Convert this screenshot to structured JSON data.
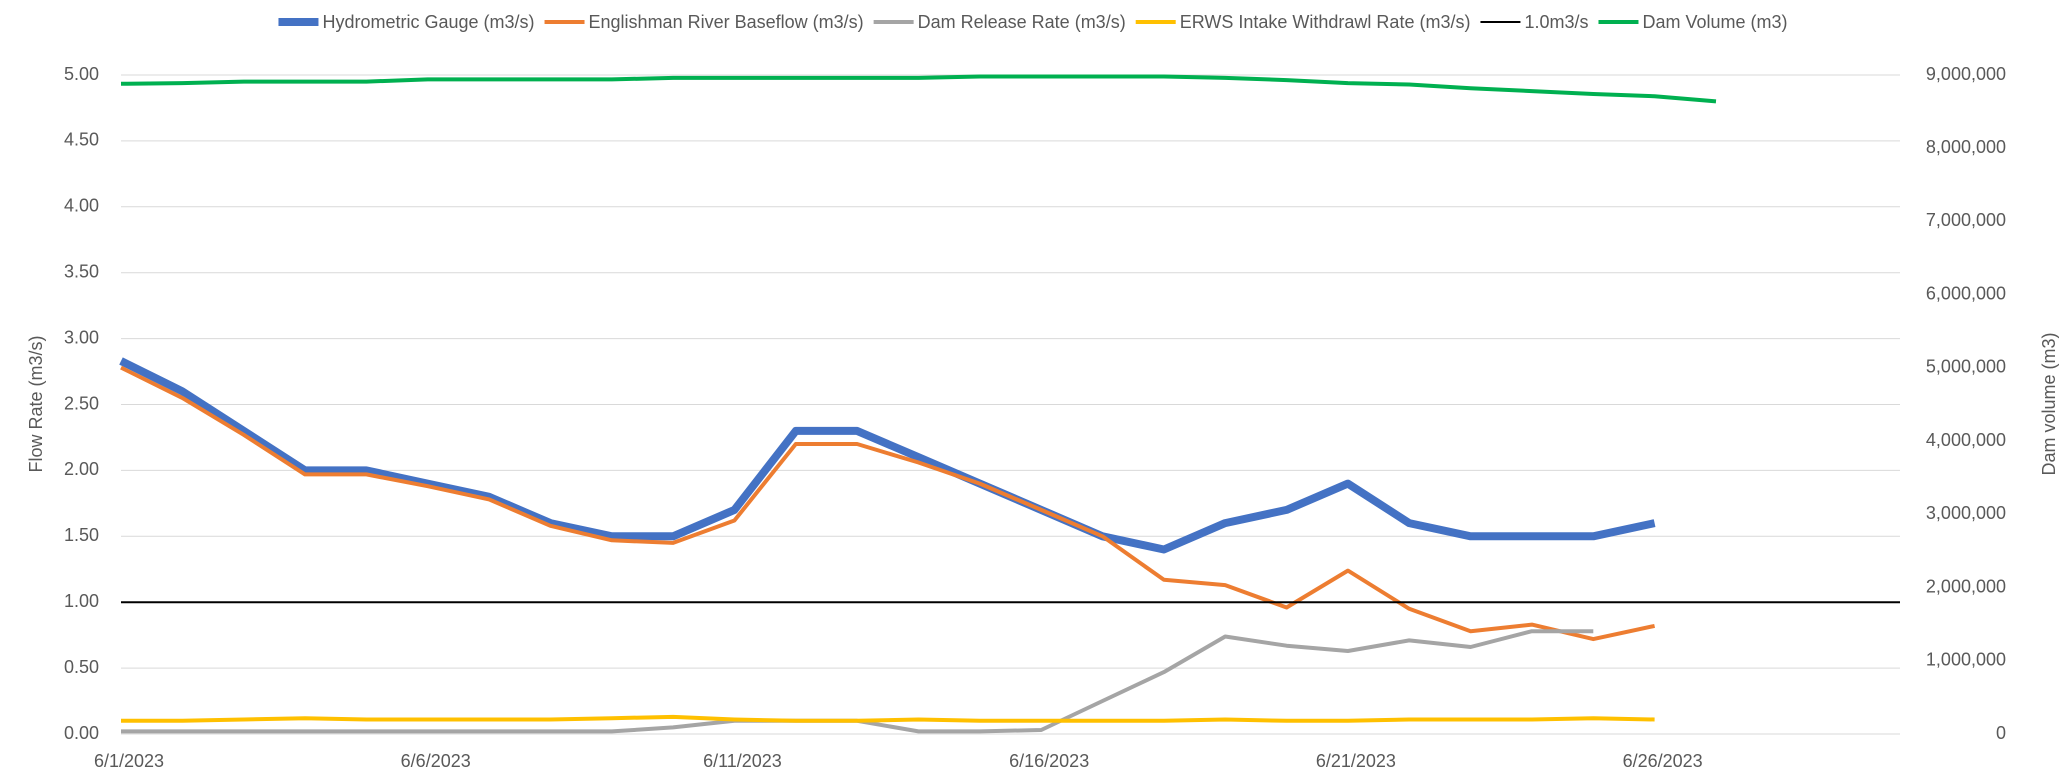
{
  "chart_data": {
    "type": "line",
    "y_label": "Flow Rate (m3/s)",
    "y2_label": "Dam volume (m3)",
    "categories": [
      "6/1/2023",
      null,
      null,
      null,
      null,
      "6/6/2023",
      null,
      null,
      null,
      null,
      "6/11/2023",
      null,
      null,
      null,
      null,
      "6/16/2023",
      null,
      null,
      null,
      null,
      "6/21/2023",
      null,
      null,
      null,
      null,
      "6/26/2023",
      null,
      null,
      null,
      null
    ],
    "ylim": [
      0,
      5
    ],
    "yticks": [
      {
        "value": 0,
        "label": "0.00"
      },
      {
        "value": 0.5,
        "label": "0.50"
      },
      {
        "value": 1,
        "label": "1.00"
      },
      {
        "value": 1.5,
        "label": "1.50"
      },
      {
        "value": 2,
        "label": "2.00"
      },
      {
        "value": 2.5,
        "label": "2.50"
      },
      {
        "value": 3,
        "label": "3.00"
      },
      {
        "value": 3.5,
        "label": "3.50"
      },
      {
        "value": 4,
        "label": "4.00"
      },
      {
        "value": 4.5,
        "label": "4.50"
      },
      {
        "value": 5,
        "label": "5.00"
      }
    ],
    "y2lim": [
      0,
      9000000
    ],
    "y2ticks": [
      0,
      {
        "value": 1000000,
        "label": "1,000,000"
      },
      {
        "value": 2000000,
        "label": "2,000,000"
      },
      {
        "value": 3000000,
        "label": "3,000,000"
      },
      {
        "value": 4000000,
        "label": "4,000,000"
      },
      {
        "value": 5000000,
        "label": "5,000,000"
      },
      {
        "value": 6000000,
        "label": "6,000,000"
      },
      {
        "value": 7000000,
        "label": "7,000,000"
      },
      {
        "value": 8000000,
        "label": "8,000,000"
      },
      {
        "value": 9000000,
        "label": "9,000,000"
      }
    ],
    "grid": true,
    "legend": "top",
    "series": [
      {
        "name": "Hydrometric Gauge (m3/s)",
        "color": "#4472c4",
        "width": 8,
        "values": [
          2.83,
          2.6,
          2.3,
          2.0,
          2.0,
          1.9,
          1.8,
          1.6,
          1.5,
          1.5,
          1.7,
          2.3,
          2.3,
          2.1,
          1.9,
          1.7,
          1.5,
          1.4,
          1.6,
          1.7,
          1.9,
          1.6,
          1.5,
          1.5,
          1.5,
          1.6,
          null,
          null,
          null,
          null
        ]
      },
      {
        "name": "Englishman River Baseflow (m3/s)",
        "color": "#ed7d31",
        "width": 4,
        "values": [
          2.78,
          2.55,
          2.27,
          1.97,
          1.97,
          1.88,
          1.78,
          1.58,
          1.47,
          1.45,
          1.62,
          2.2,
          2.2,
          2.06,
          1.9,
          1.7,
          1.5,
          1.17,
          1.13,
          0.96,
          1.24,
          0.95,
          0.78,
          0.83,
          0.72,
          0.82,
          null,
          null,
          null,
          null
        ]
      },
      {
        "name": "Dam Release Rate (m3/s)",
        "color": "#a5a5a5",
        "width": 4,
        "values": [
          0.02,
          0.02,
          0.02,
          0.02,
          0.02,
          0.02,
          0.02,
          0.02,
          0.02,
          0.05,
          0.1,
          0.1,
          0.1,
          0.02,
          0.02,
          0.03,
          0.25,
          0.47,
          0.74,
          0.67,
          0.63,
          0.71,
          0.66,
          0.78,
          0.78,
          null,
          null,
          null,
          null,
          null
        ]
      },
      {
        "name": "ERWS Intake Withdrawl Rate (m3/s)",
        "color": "#ffc000",
        "width": 4,
        "values": [
          0.1,
          0.1,
          0.11,
          0.12,
          0.11,
          0.11,
          0.11,
          0.11,
          0.12,
          0.13,
          0.11,
          0.1,
          0.1,
          0.11,
          0.1,
          0.1,
          0.1,
          0.1,
          0.11,
          0.1,
          0.1,
          0.11,
          0.11,
          0.11,
          0.12,
          0.11,
          null,
          null,
          null,
          null
        ]
      },
      {
        "name": "1.0m3/s",
        "color": "#000000",
        "width": 2,
        "values": [
          1,
          1,
          1,
          1,
          1,
          1,
          1,
          1,
          1,
          1,
          1,
          1,
          1,
          1,
          1,
          1,
          1,
          1,
          1,
          1,
          1,
          1,
          1,
          1,
          1,
          1,
          1,
          1,
          1,
          1
        ]
      },
      {
        "name": "Dam Volume (m3)",
        "color": "#00b050",
        "width": 4,
        "axis": "y2",
        "values": [
          8880000,
          8890000,
          8910000,
          8910000,
          8910000,
          8940000,
          8940000,
          8940000,
          8940000,
          8960000,
          8960000,
          8960000,
          8960000,
          8960000,
          8980000,
          8980000,
          8980000,
          8980000,
          8960000,
          8930000,
          8890000,
          8870000,
          8820000,
          8780000,
          8740000,
          8710000,
          8640000,
          null,
          null,
          null
        ]
      }
    ]
  }
}
